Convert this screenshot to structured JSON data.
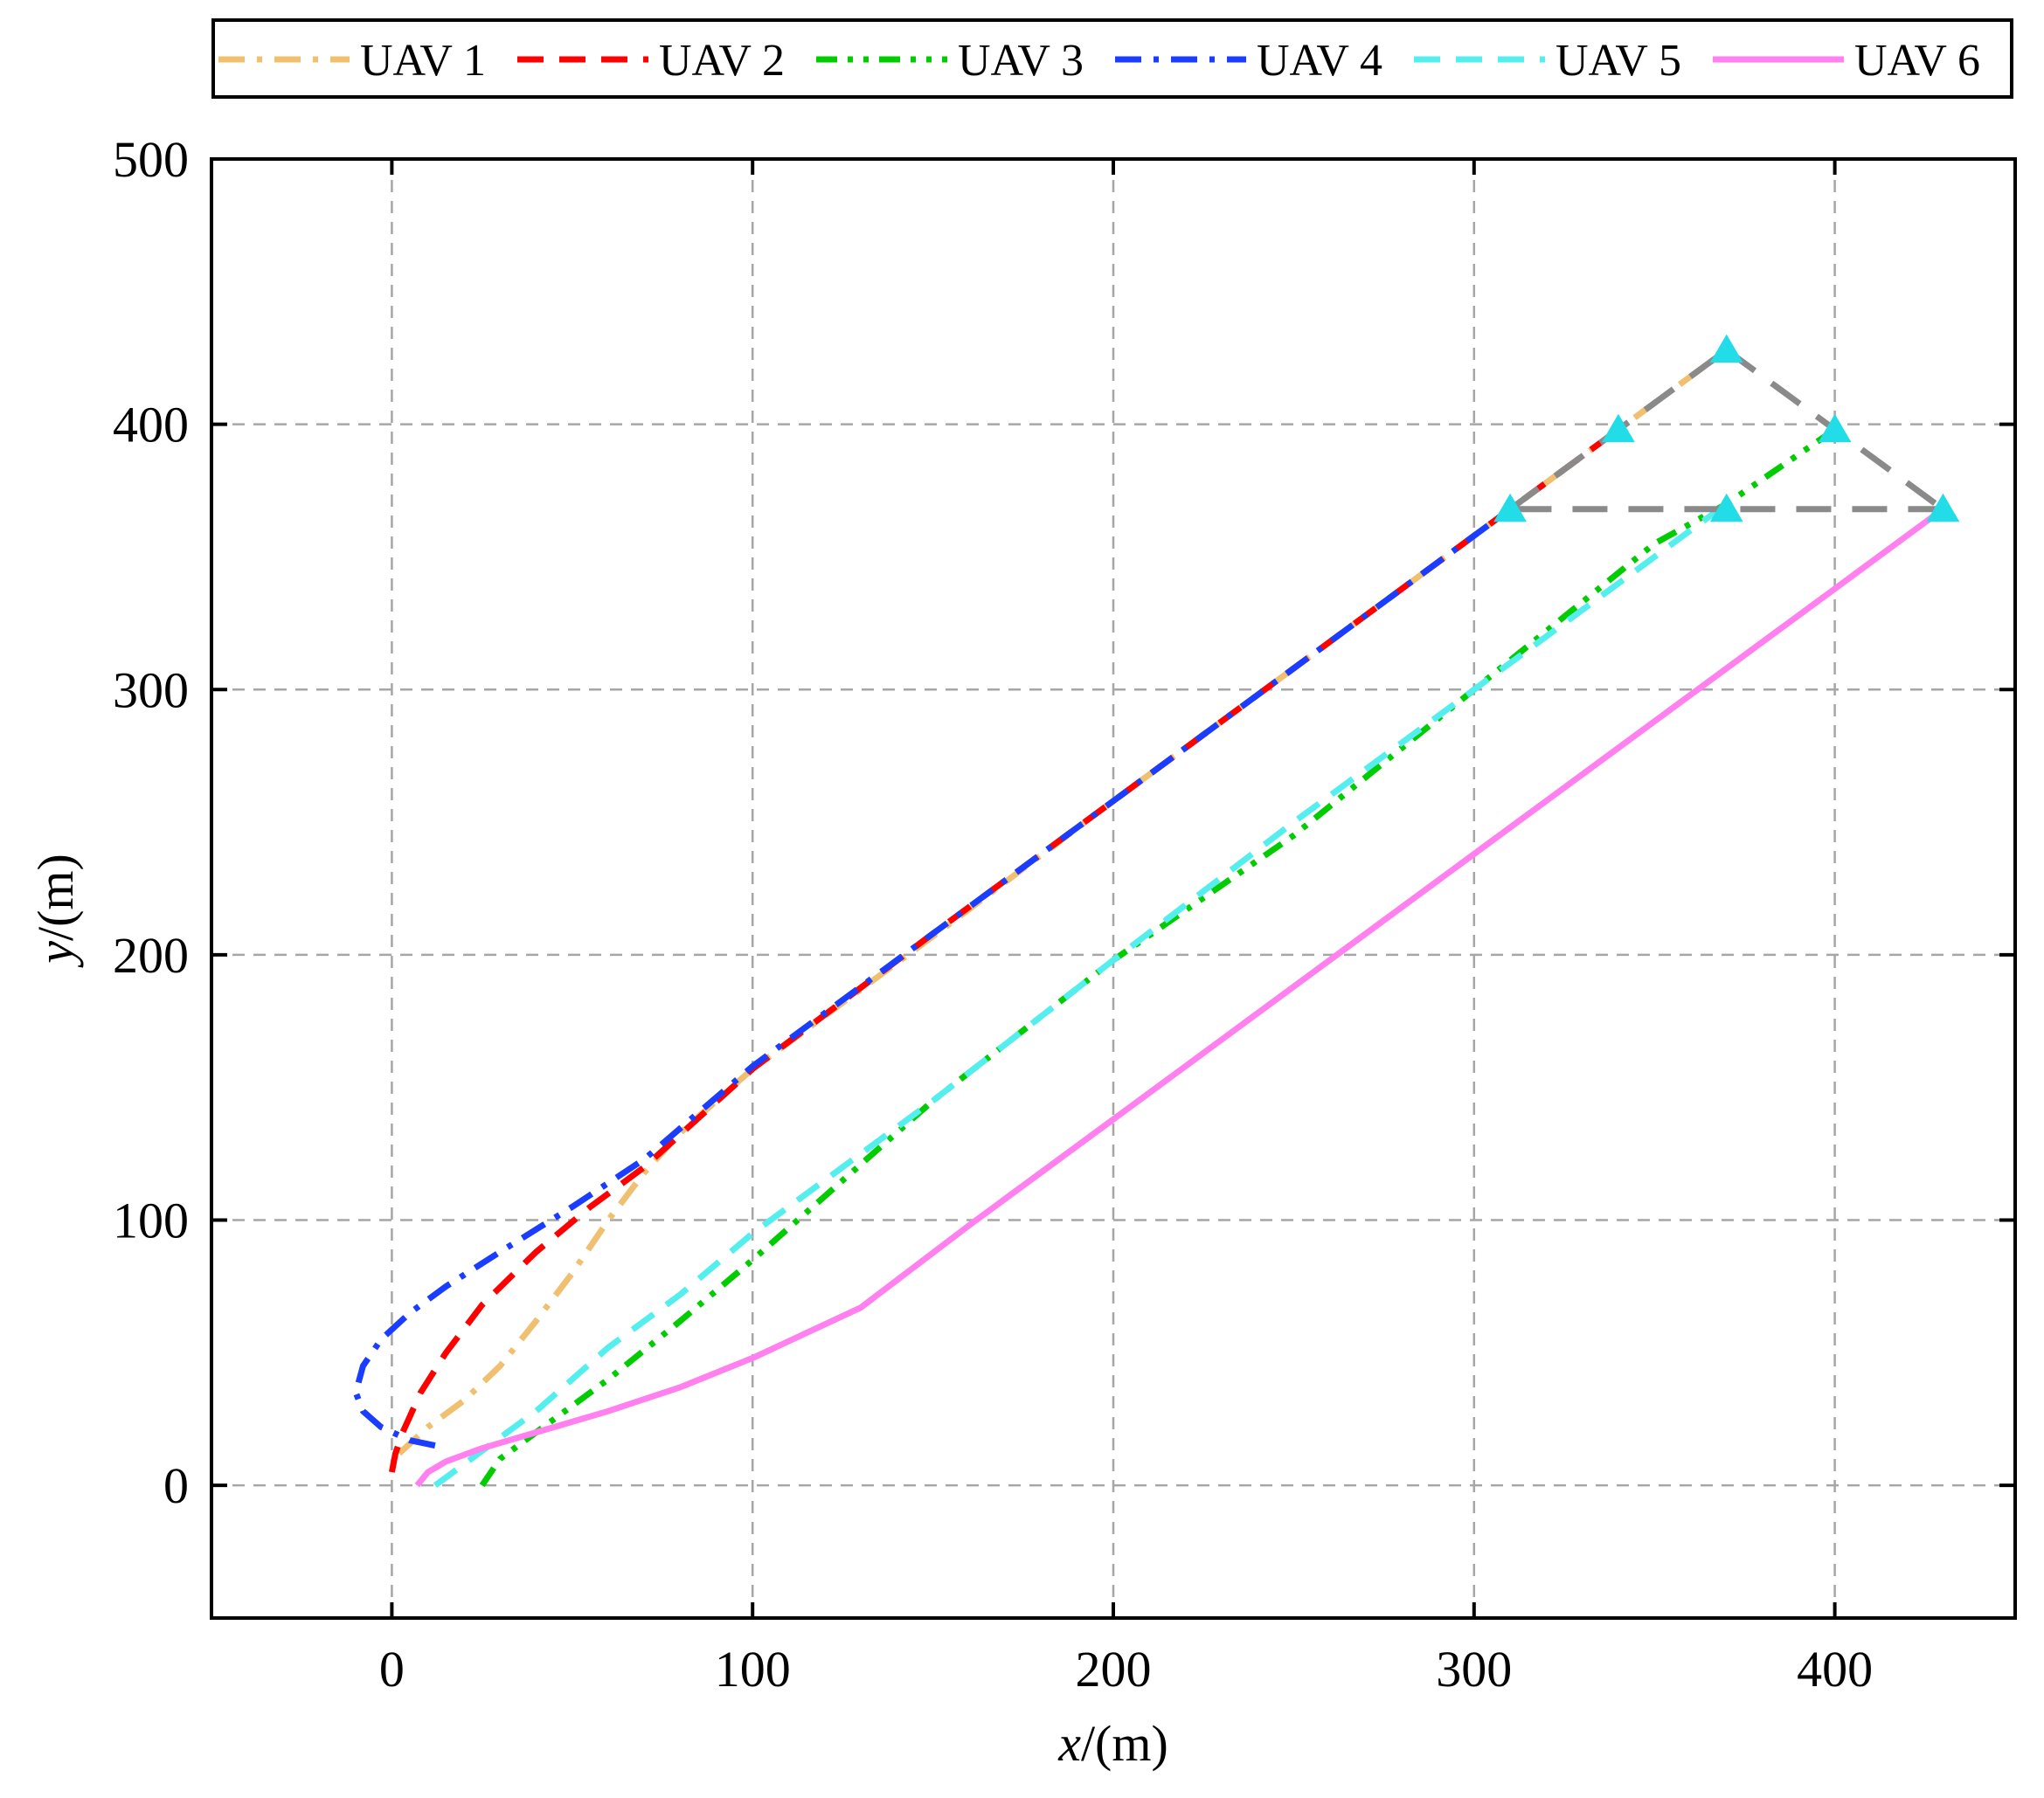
{
  "chart_data": {
    "type": "line",
    "xlabel": {
      "var": "x",
      "unit": "/(m)"
    },
    "ylabel": {
      "var": "y",
      "unit": "/(m)"
    },
    "xlim": [
      -50,
      450
    ],
    "ylim": [
      -50,
      500
    ],
    "xticks": [
      0,
      100,
      200,
      300,
      400
    ],
    "yticks": [
      0,
      100,
      200,
      300,
      400,
      500
    ],
    "grid": true,
    "legend_position": "top",
    "series": [
      {
        "name": "UAV 1",
        "color": "#f0c070",
        "dash": "dashdot",
        "x": [
          2,
          10,
          20,
          30,
          40,
          50,
          60,
          70,
          80,
          100,
          150,
          200,
          250,
          300,
          340,
          370
        ],
        "y": [
          12,
          22,
          32,
          45,
          62,
          80,
          100,
          118,
          133,
          157,
          207,
          258,
          308,
          358,
          398,
          428
        ]
      },
      {
        "name": "UAV 2",
        "color": "#ff0000",
        "dash": "dash",
        "x": [
          0,
          1,
          3,
          8,
          15,
          25,
          40,
          55,
          70,
          100,
          150,
          200,
          250,
          300,
          340
        ],
        "y": [
          5,
          12,
          20,
          35,
          50,
          68,
          88,
          105,
          120,
          157,
          208,
          258,
          308,
          358,
          398
        ]
      },
      {
        "name": "UAV 3",
        "color": "#00cc00",
        "dash": "dashdotdot",
        "x": [
          25,
          30,
          40,
          50,
          60,
          80,
          100,
          150,
          200,
          250,
          300,
          350,
          370,
          400
        ],
        "y": [
          0,
          10,
          20,
          30,
          40,
          62,
          85,
          145,
          198,
          245,
          300,
          355,
          370,
          398
        ]
      },
      {
        "name": "UAV 4",
        "color": "#1a3dff",
        "dash": "dashdot",
        "x": [
          12,
          5,
          -3,
          -8,
          -10,
          -8,
          -3,
          5,
          15,
          30,
          50,
          70,
          100,
          150,
          200,
          250,
          310
        ],
        "y": [
          15,
          17,
          22,
          28,
          35,
          45,
          55,
          65,
          75,
          88,
          105,
          123,
          158,
          208,
          258,
          308,
          368
        ]
      },
      {
        "name": "UAV 5",
        "color": "#55eeee",
        "dash": "dash",
        "x": [
          12,
          20,
          30,
          40,
          50,
          60,
          80,
          100,
          150,
          200,
          250,
          300,
          370
        ],
        "y": [
          0,
          8,
          18,
          28,
          40,
          52,
          72,
          95,
          145,
          198,
          250,
          300,
          370
        ]
      },
      {
        "name": "UAV 6",
        "color": "#ff80ee",
        "dash": "solid",
        "x": [
          7,
          10,
          15,
          25,
          40,
          60,
          80,
          100,
          130,
          160,
          200,
          250,
          300,
          350,
          400,
          430
        ],
        "y": [
          0,
          5,
          9,
          14,
          20,
          28,
          37,
          48,
          67,
          98,
          138,
          188,
          238,
          288,
          338,
          368
        ]
      }
    ],
    "formation": {
      "color": "#8a8a8a",
      "marker_color": "#22dde8",
      "points": [
        {
          "x": 310,
          "y": 368
        },
        {
          "x": 340,
          "y": 398
        },
        {
          "x": 370,
          "y": 428
        },
        {
          "x": 400,
          "y": 398
        },
        {
          "x": 430,
          "y": 368
        },
        {
          "x": 370,
          "y": 368
        }
      ],
      "edges": [
        [
          0,
          2
        ],
        [
          2,
          4
        ],
        [
          4,
          0
        ]
      ]
    }
  }
}
